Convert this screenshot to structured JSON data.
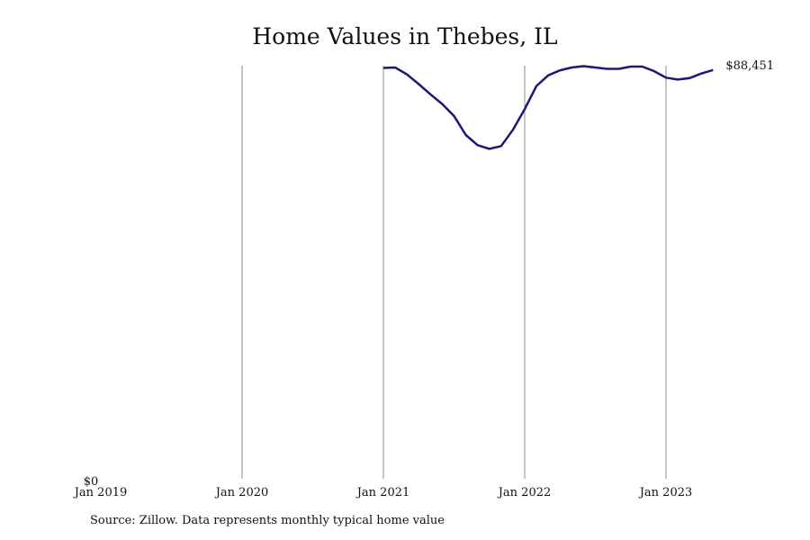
{
  "title": "Home Values in Thebes, IL",
  "source": "Source: Zillow. Data represents monthly typical home value",
  "colors": {
    "line": "#1a1a75",
    "grid": "#8c8c8c",
    "text": "#111111"
  },
  "chart_data": {
    "type": "line",
    "title": "Home Values in Thebes, IL",
    "xlabel": "",
    "ylabel": "",
    "x_ticks": [
      "Jan 2019",
      "Jan 2020",
      "Jan 2021",
      "Jan 2022",
      "Jan 2023"
    ],
    "y_ticks": [
      "$0"
    ],
    "xlim": [
      "2019-01",
      "2023-06"
    ],
    "ylim": [
      0,
      89000
    ],
    "grid": "vertical",
    "end_label": "$88,451",
    "series": [
      {
        "x": [
          "2021-01",
          "2021-02",
          "2021-03",
          "2021-04",
          "2021-05",
          "2021-06",
          "2021-07",
          "2021-08",
          "2021-09",
          "2021-10",
          "2021-11",
          "2021-12",
          "2022-01",
          "2022-02",
          "2022-03",
          "2022-04",
          "2022-05",
          "2022-06",
          "2022-07",
          "2022-08",
          "2022-09",
          "2022-10",
          "2022-11",
          "2022-12",
          "2023-01",
          "2023-02",
          "2023-03",
          "2023-04",
          "2023-05"
        ],
        "values": [
          88900,
          89000,
          87500,
          85400,
          83200,
          81100,
          78500,
          74400,
          72200,
          71400,
          72000,
          75500,
          80000,
          85000,
          87300,
          88400,
          89000,
          89300,
          89000,
          88700,
          88700,
          89200,
          89200,
          88200,
          86800,
          86400,
          86700,
          87700,
          88451
        ]
      }
    ]
  }
}
